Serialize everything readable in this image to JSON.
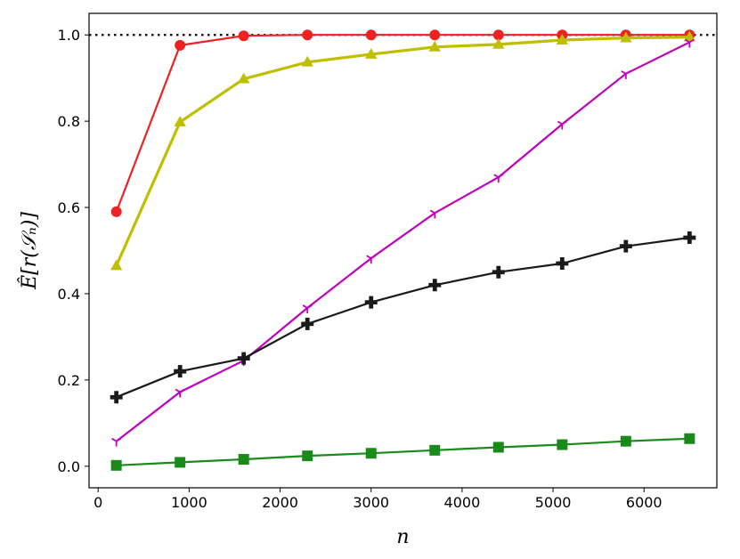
{
  "chart_data": {
    "type": "line",
    "xlabel": "n",
    "ylabel": "Ê[r(𝒮ₙ)]",
    "xlim": [
      -100,
      6800
    ],
    "ylim": [
      -0.05,
      1.05
    ],
    "xticks": [
      0,
      1000,
      2000,
      3000,
      4000,
      5000,
      6000
    ],
    "yticks": [
      0.0,
      0.2,
      0.4,
      0.6,
      0.8,
      1.0
    ],
    "xtick_labels": [
      "0",
      "1000",
      "2000",
      "3000",
      "4000",
      "5000",
      "6000"
    ],
    "ytick_labels": [
      "0.0",
      "0.2",
      "0.4",
      "0.6",
      "0.8",
      "1.0"
    ],
    "reference_line": {
      "y": 1.0,
      "style": "dotted",
      "color": "#000000"
    },
    "x": [
      200,
      900,
      1600,
      2300,
      3000,
      3700,
      4400,
      5100,
      5800,
      6500
    ],
    "series": [
      {
        "color": "#ee2222",
        "marker": "circle",
        "values": [
          0.59,
          0.976,
          0.998,
          1.0,
          1.0,
          1.0,
          1.0,
          1.0,
          1.0,
          1.0
        ]
      },
      {
        "color": "#bfbf00",
        "marker": "triangle",
        "values": [
          0.465,
          0.798,
          0.898,
          0.937,
          0.955,
          0.972,
          0.978,
          0.988,
          0.993,
          0.995
        ]
      },
      {
        "color": "#bf00bf",
        "marker": "tri-down",
        "values": [
          0.058,
          0.172,
          0.245,
          0.367,
          0.482,
          0.587,
          0.67,
          0.793,
          0.91,
          0.983
        ]
      },
      {
        "color": "#1a1a1a",
        "marker": "plus",
        "values": [
          0.16,
          0.22,
          0.25,
          0.33,
          0.38,
          0.42,
          0.45,
          0.47,
          0.51,
          0.53
        ]
      },
      {
        "color": "#1a8a1a",
        "marker": "square",
        "values": [
          0.002,
          0.009,
          0.016,
          0.024,
          0.03,
          0.037,
          0.044,
          0.05,
          0.058,
          0.064
        ]
      }
    ]
  }
}
